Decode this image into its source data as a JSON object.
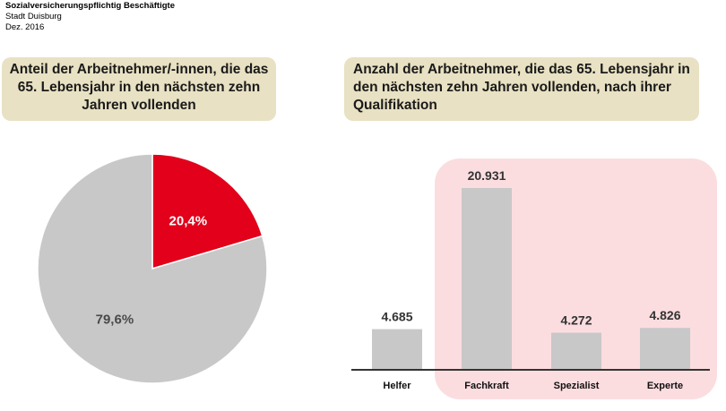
{
  "header": {
    "line1": "Sozialversicherungspflichtig Beschäftigte",
    "line2": "Stadt Duisburg",
    "line3": "Dez. 2016"
  },
  "colors": {
    "highlight": "#e2001a",
    "neutral": "#c8c8c8",
    "title_bg": "#e8e1c3",
    "band": "#fbdde0"
  },
  "chart_data": [
    {
      "type": "pie",
      "title": "Anteil der Arbeitnehmer/-innen, die das 65. Lebensjahr in den nächsten zehn Jahren vollenden",
      "slices": [
        {
          "label": "20,4%",
          "value": 20.4,
          "color": "#e2001a",
          "label_color": "#ffffff"
        },
        {
          "label": "79,6%",
          "value": 79.6,
          "color": "#c8c8c8",
          "label_color": "#4a4a4a"
        }
      ]
    },
    {
      "type": "bar",
      "title": "Anzahl der Arbeitnehmer, die das 65. Lebensjahr in den nächsten zehn Jahren vollenden, nach ihrer Qualifikation",
      "categories": [
        "Helfer",
        "Fachkraft",
        "Spezialist",
        "Experte"
      ],
      "values": [
        4685,
        20931,
        4272,
        4826
      ],
      "value_labels": [
        "4.685",
        "20.931",
        "4.272",
        "4.826"
      ],
      "highlighted_categories": [
        "Fachkraft",
        "Spezialist",
        "Experte"
      ],
      "ylim": [
        0,
        20931
      ]
    }
  ]
}
